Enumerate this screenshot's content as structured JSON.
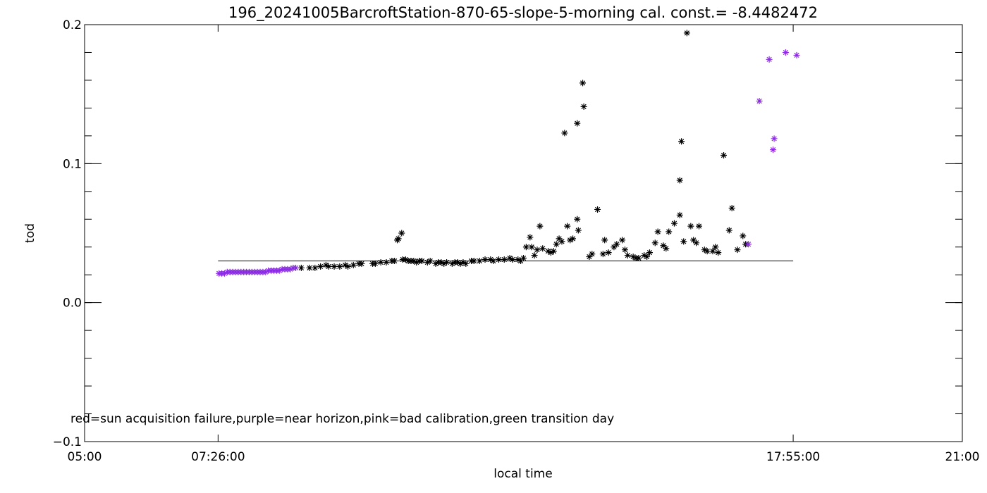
{
  "chart_data": {
    "type": "scatter",
    "title": "196_20241005BarcroftStation-870-65-slope-5-morning cal. const.= -8.4482472",
    "xlabel": "local time",
    "ylabel": "tod",
    "xlim": [
      5.0,
      21.0
    ],
    "ylim": [
      -0.1,
      0.2
    ],
    "x_ticks": [
      {
        "value": 5.0,
        "label": "05:00"
      },
      {
        "value": 7.4333,
        "label": "07:26:00"
      },
      {
        "value": 17.9167,
        "label": "17:55:00"
      },
      {
        "value": 21.0,
        "label": "21:00"
      }
    ],
    "y_ticks": [
      {
        "value": -0.1,
        "label": "−0.1"
      },
      {
        "value": 0.0,
        "label": "0.0"
      },
      {
        "value": 0.1,
        "label": "0.1"
      },
      {
        "value": 0.2,
        "label": "0.2"
      }
    ],
    "note": "red=sun acquisition failure,purple=near horizon,pink=bad calibration,green transition day",
    "colors": {
      "normal": "#000000",
      "near_horizon": "#8a2be2",
      "reference_line": "#000000"
    },
    "reference_line": {
      "y": 0.03,
      "x_start": 7.4333,
      "x_end": 17.9167
    },
    "grid": false,
    "series": [
      {
        "marker": "asterisk",
        "color": "#000000",
        "points": [
          [
            8.95,
            0.025
          ],
          [
            9.1,
            0.025
          ],
          [
            9.2,
            0.025
          ],
          [
            9.3,
            0.026
          ],
          [
            9.4,
            0.027
          ],
          [
            9.45,
            0.026
          ],
          [
            9.55,
            0.026
          ],
          [
            9.65,
            0.026
          ],
          [
            9.75,
            0.027
          ],
          [
            9.8,
            0.026
          ],
          [
            9.9,
            0.027
          ],
          [
            10.0,
            0.028
          ],
          [
            10.05,
            0.028
          ],
          [
            10.25,
            0.028
          ],
          [
            10.3,
            0.028
          ],
          [
            10.4,
            0.029
          ],
          [
            10.5,
            0.029
          ],
          [
            10.6,
            0.03
          ],
          [
            10.65,
            0.03
          ],
          [
            10.7,
            0.045
          ],
          [
            10.72,
            0.046
          ],
          [
            10.78,
            0.05
          ],
          [
            10.8,
            0.031
          ],
          [
            10.85,
            0.031
          ],
          [
            10.9,
            0.03
          ],
          [
            10.95,
            0.03
          ],
          [
            11.0,
            0.03
          ],
          [
            11.05,
            0.029
          ],
          [
            11.1,
            0.03
          ],
          [
            11.15,
            0.03
          ],
          [
            11.25,
            0.029
          ],
          [
            11.3,
            0.03
          ],
          [
            11.4,
            0.028
          ],
          [
            11.45,
            0.029
          ],
          [
            11.5,
            0.029
          ],
          [
            11.55,
            0.028
          ],
          [
            11.6,
            0.029
          ],
          [
            11.7,
            0.028
          ],
          [
            11.75,
            0.029
          ],
          [
            11.8,
            0.029
          ],
          [
            11.85,
            0.028
          ],
          [
            11.9,
            0.029
          ],
          [
            11.95,
            0.028
          ],
          [
            12.05,
            0.03
          ],
          [
            12.1,
            0.03
          ],
          [
            12.2,
            0.03
          ],
          [
            12.3,
            0.031
          ],
          [
            12.4,
            0.031
          ],
          [
            12.45,
            0.03
          ],
          [
            12.55,
            0.031
          ],
          [
            12.65,
            0.031
          ],
          [
            12.75,
            0.032
          ],
          [
            12.8,
            0.031
          ],
          [
            12.9,
            0.031
          ],
          [
            12.95,
            0.03
          ],
          [
            13.0,
            0.032
          ],
          [
            13.05,
            0.04
          ],
          [
            13.12,
            0.047
          ],
          [
            13.15,
            0.04
          ],
          [
            13.2,
            0.034
          ],
          [
            13.25,
            0.038
          ],
          [
            13.3,
            0.055
          ],
          [
            13.35,
            0.039
          ],
          [
            13.45,
            0.037
          ],
          [
            13.5,
            0.036
          ],
          [
            13.55,
            0.037
          ],
          [
            13.6,
            0.042
          ],
          [
            13.65,
            0.046
          ],
          [
            13.7,
            0.044
          ],
          [
            13.8,
            0.055
          ],
          [
            13.85,
            0.045
          ],
          [
            13.9,
            0.046
          ],
          [
            13.98,
            0.06
          ],
          [
            14.0,
            0.052
          ],
          [
            13.75,
            0.122
          ],
          [
            13.98,
            0.129
          ],
          [
            14.08,
            0.158
          ],
          [
            14.1,
            0.141
          ],
          [
            14.2,
            0.033
          ],
          [
            14.25,
            0.035
          ],
          [
            14.35,
            0.067
          ],
          [
            14.45,
            0.035
          ],
          [
            14.48,
            0.045
          ],
          [
            14.55,
            0.036
          ],
          [
            14.65,
            0.04
          ],
          [
            14.7,
            0.042
          ],
          [
            14.8,
            0.045
          ],
          [
            14.85,
            0.038
          ],
          [
            14.9,
            0.034
          ],
          [
            15.0,
            0.033
          ],
          [
            15.05,
            0.032
          ],
          [
            15.1,
            0.032
          ],
          [
            15.2,
            0.034
          ],
          [
            15.25,
            0.033
          ],
          [
            15.3,
            0.036
          ],
          [
            15.4,
            0.043
          ],
          [
            15.45,
            0.051
          ],
          [
            15.55,
            0.041
          ],
          [
            15.6,
            0.039
          ],
          [
            15.65,
            0.051
          ],
          [
            15.75,
            0.057
          ],
          [
            15.85,
            0.063
          ],
          [
            15.92,
            0.044
          ],
          [
            15.85,
            0.088
          ],
          [
            15.88,
            0.116
          ],
          [
            15.98,
            0.194
          ],
          [
            16.05,
            0.055
          ],
          [
            16.1,
            0.045
          ],
          [
            16.15,
            0.043
          ],
          [
            16.2,
            0.055
          ],
          [
            16.3,
            0.038
          ],
          [
            16.35,
            0.037
          ],
          [
            16.45,
            0.037
          ],
          [
            16.5,
            0.04
          ],
          [
            16.55,
            0.036
          ],
          [
            16.65,
            0.106
          ],
          [
            16.75,
            0.052
          ],
          [
            16.8,
            0.068
          ],
          [
            16.9,
            0.038
          ],
          [
            17.0,
            0.048
          ],
          [
            17.05,
            0.042
          ]
        ]
      },
      {
        "name": "",
        "marker": "asterisk",
        "color": "#8a2be2",
        "points": [
          [
            7.45,
            0.021
          ],
          [
            7.5,
            0.021
          ],
          [
            7.55,
            0.021
          ],
          [
            7.6,
            0.022
          ],
          [
            7.65,
            0.022
          ],
          [
            7.7,
            0.022
          ],
          [
            7.75,
            0.022
          ],
          [
            7.8,
            0.022
          ],
          [
            7.85,
            0.022
          ],
          [
            7.9,
            0.022
          ],
          [
            7.95,
            0.022
          ],
          [
            8.0,
            0.022
          ],
          [
            8.05,
            0.022
          ],
          [
            8.1,
            0.022
          ],
          [
            8.15,
            0.022
          ],
          [
            8.2,
            0.022
          ],
          [
            8.25,
            0.022
          ],
          [
            8.3,
            0.022
          ],
          [
            8.35,
            0.023
          ],
          [
            8.4,
            0.023
          ],
          [
            8.45,
            0.023
          ],
          [
            8.5,
            0.023
          ],
          [
            8.55,
            0.023
          ],
          [
            8.6,
            0.024
          ],
          [
            8.65,
            0.024
          ],
          [
            8.7,
            0.024
          ],
          [
            8.75,
            0.024
          ],
          [
            8.8,
            0.025
          ],
          [
            8.85,
            0.025
          ],
          [
            17.1,
            0.042
          ],
          [
            17.3,
            0.145
          ],
          [
            17.48,
            0.175
          ],
          [
            17.55,
            0.11
          ],
          [
            17.57,
            0.118
          ],
          [
            17.78,
            0.18
          ],
          [
            17.98,
            0.178
          ]
        ]
      }
    ]
  }
}
